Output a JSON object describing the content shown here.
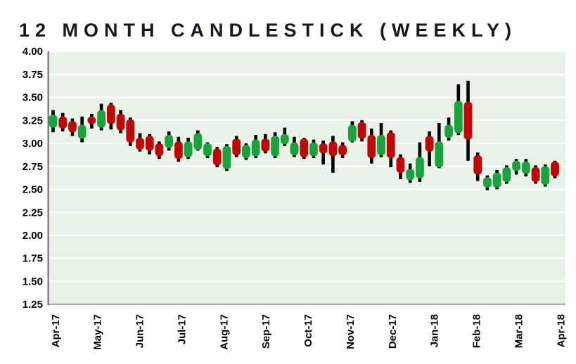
{
  "title": "12 MONTH CANDLESTICK (WEEKLY)",
  "chart_data": {
    "type": "candlestick",
    "interval": "weekly",
    "title": "12 MONTH CANDLESTICK (WEEKLY)",
    "grid": true,
    "legend": "none",
    "colors": {
      "up": "#1aa33c",
      "down": "#c00707",
      "wick": "#000000",
      "plot_bg": "#e8f2e7",
      "gridline": "#ffffff",
      "axis_left": "#595959",
      "axis_bottom": "#8c8c8c",
      "label": "#000000"
    },
    "y_axis": {
      "min": 1.25,
      "max": 4.0,
      "step": 0.25,
      "ticks": [
        "4.00",
        "3.75",
        "3.50",
        "3.25",
        "3.00",
        "2.75",
        "2.50",
        "2.25",
        "2.00",
        "1.75",
        "1.50",
        "1.25"
      ]
    },
    "x_axis": {
      "labels": [
        "Apr-17",
        "May-17",
        "Jun-17",
        "Jul-17",
        "Aug-17",
        "Sep-17",
        "Oct-17",
        "Nov-17",
        "Dec-17",
        "Jan-18",
        "Feb-18",
        "Mar-18",
        "Apr-18"
      ]
    },
    "candles": [
      {
        "o": 3.17,
        "h": 3.36,
        "l": 3.12,
        "c": 3.31
      },
      {
        "o": 3.29,
        "h": 3.33,
        "l": 3.13,
        "c": 3.16
      },
      {
        "o": 3.24,
        "h": 3.27,
        "l": 3.08,
        "c": 3.12
      },
      {
        "o": 3.05,
        "h": 3.29,
        "l": 3.01,
        "c": 3.2
      },
      {
        "o": 3.29,
        "h": 3.32,
        "l": 3.16,
        "c": 3.21
      },
      {
        "o": 3.17,
        "h": 3.43,
        "l": 3.14,
        "c": 3.36
      },
      {
        "o": 3.42,
        "h": 3.44,
        "l": 3.15,
        "c": 3.21
      },
      {
        "o": 3.32,
        "h": 3.36,
        "l": 3.11,
        "c": 3.14
      },
      {
        "o": 3.26,
        "h": 3.28,
        "l": 2.97,
        "c": 3.01
      },
      {
        "o": 3.06,
        "h": 3.11,
        "l": 2.91,
        "c": 2.93
      },
      {
        "o": 3.08,
        "h": 3.1,
        "l": 2.88,
        "c": 2.92
      },
      {
        "o": 3.0,
        "h": 3.02,
        "l": 2.83,
        "c": 2.86
      },
      {
        "o": 2.95,
        "h": 3.13,
        "l": 2.92,
        "c": 3.09
      },
      {
        "o": 3.02,
        "h": 3.07,
        "l": 2.8,
        "c": 2.83
      },
      {
        "o": 2.85,
        "h": 3.06,
        "l": 2.83,
        "c": 3.02
      },
      {
        "o": 2.93,
        "h": 3.14,
        "l": 2.92,
        "c": 3.11
      },
      {
        "o": 2.86,
        "h": 3.01,
        "l": 2.84,
        "c": 3.0
      },
      {
        "o": 2.94,
        "h": 2.96,
        "l": 2.74,
        "c": 2.76
      },
      {
        "o": 2.72,
        "h": 2.99,
        "l": 2.7,
        "c": 2.97
      },
      {
        "o": 3.05,
        "h": 3.08,
        "l": 2.85,
        "c": 2.87
      },
      {
        "o": 2.84,
        "h": 3.0,
        "l": 2.82,
        "c": 2.98
      },
      {
        "o": 2.86,
        "h": 3.09,
        "l": 2.84,
        "c": 3.04
      },
      {
        "o": 3.05,
        "h": 3.1,
        "l": 2.89,
        "c": 2.91
      },
      {
        "o": 2.86,
        "h": 3.12,
        "l": 2.84,
        "c": 3.08
      },
      {
        "o": 2.99,
        "h": 3.17,
        "l": 2.97,
        "c": 3.1
      },
      {
        "o": 2.87,
        "h": 3.07,
        "l": 2.85,
        "c": 3.01
      },
      {
        "o": 3.05,
        "h": 3.06,
        "l": 2.83,
        "c": 2.85
      },
      {
        "o": 2.86,
        "h": 3.04,
        "l": 2.84,
        "c": 3.01
      },
      {
        "o": 3.0,
        "h": 3.03,
        "l": 2.77,
        "c": 2.89
      },
      {
        "o": 3.02,
        "h": 3.08,
        "l": 2.68,
        "c": 2.86
      },
      {
        "o": 2.98,
        "h": 3.01,
        "l": 2.84,
        "c": 2.87
      },
      {
        "o": 3.02,
        "h": 3.24,
        "l": 3.01,
        "c": 3.2
      },
      {
        "o": 3.23,
        "h": 3.25,
        "l": 3.02,
        "c": 3.05
      },
      {
        "o": 3.09,
        "h": 3.16,
        "l": 2.78,
        "c": 2.84
      },
      {
        "o": 2.87,
        "h": 3.22,
        "l": 2.85,
        "c": 3.09
      },
      {
        "o": 3.12,
        "h": 3.14,
        "l": 2.74,
        "c": 2.84
      },
      {
        "o": 2.85,
        "h": 2.88,
        "l": 2.61,
        "c": 2.68
      },
      {
        "o": 2.6,
        "h": 2.78,
        "l": 2.57,
        "c": 2.72
      },
      {
        "o": 2.62,
        "h": 3.01,
        "l": 2.58,
        "c": 2.85
      },
      {
        "o": 3.08,
        "h": 3.13,
        "l": 2.75,
        "c": 2.91
      },
      {
        "o": 2.74,
        "h": 3.22,
        "l": 2.73,
        "c": 3.02
      },
      {
        "o": 3.06,
        "h": 3.28,
        "l": 3.03,
        "c": 3.2
      },
      {
        "o": 3.11,
        "h": 3.64,
        "l": 3.09,
        "c": 3.46
      },
      {
        "o": 3.45,
        "h": 3.68,
        "l": 2.81,
        "c": 3.04
      },
      {
        "o": 2.87,
        "h": 2.9,
        "l": 2.59,
        "c": 2.66
      },
      {
        "o": 2.52,
        "h": 2.65,
        "l": 2.49,
        "c": 2.63
      },
      {
        "o": 2.52,
        "h": 2.71,
        "l": 2.5,
        "c": 2.68
      },
      {
        "o": 2.58,
        "h": 2.76,
        "l": 2.56,
        "c": 2.74
      },
      {
        "o": 2.7,
        "h": 2.83,
        "l": 2.66,
        "c": 2.81
      },
      {
        "o": 2.67,
        "h": 2.83,
        "l": 2.64,
        "c": 2.8
      },
      {
        "o": 2.74,
        "h": 2.76,
        "l": 2.56,
        "c": 2.58
      },
      {
        "o": 2.55,
        "h": 2.77,
        "l": 2.53,
        "c": 2.75
      },
      {
        "o": 2.8,
        "h": 2.81,
        "l": 2.62,
        "c": 2.64
      }
    ]
  }
}
